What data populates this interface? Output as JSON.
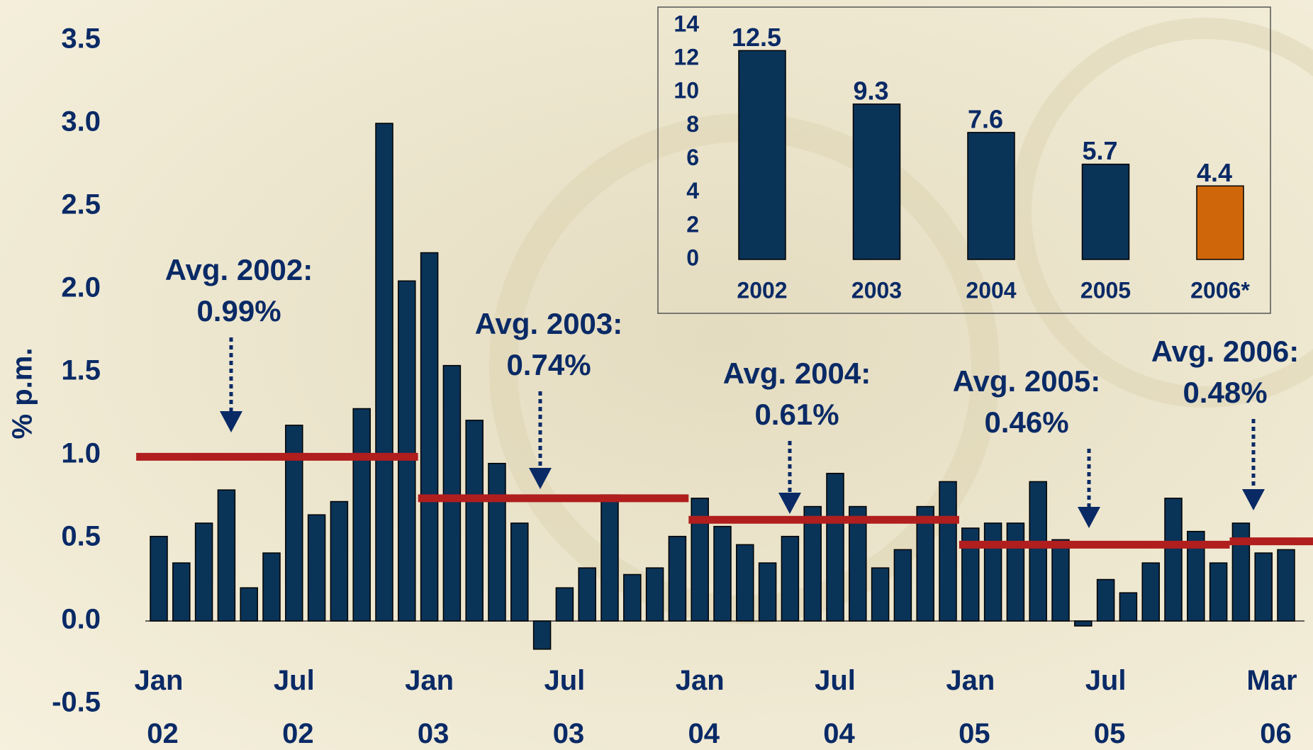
{
  "chart_data": [
    {
      "type": "bar",
      "y_label": "% p.m.",
      "categories": [
        "Jan 02",
        null,
        null,
        null,
        null,
        null,
        "Jul 02",
        null,
        null,
        null,
        null,
        null,
        "Jan 03",
        null,
        null,
        null,
        null,
        null,
        "Jul 03",
        null,
        null,
        null,
        null,
        null,
        "Jan 04",
        null,
        null,
        null,
        null,
        null,
        "Jul 04",
        null,
        null,
        null,
        null,
        null,
        "Jan 05",
        null,
        null,
        null,
        null,
        null,
        "Jul 05",
        null,
        null,
        null,
        null,
        null,
        null,
        null,
        "Mar 06"
      ],
      "values": [
        0.51,
        0.35,
        0.59,
        0.79,
        0.2,
        0.41,
        1.18,
        0.64,
        0.72,
        1.28,
        3.0,
        2.05,
        2.22,
        1.54,
        1.21,
        0.95,
        0.59,
        -0.17,
        0.2,
        0.32,
        0.76,
        0.28,
        0.32,
        0.51,
        0.74,
        0.57,
        0.46,
        0.35,
        0.51,
        0.69,
        0.89,
        0.69,
        0.32,
        0.43,
        0.69,
        0.84,
        0.56,
        0.59,
        0.59,
        0.84,
        0.49,
        -0.03,
        0.25,
        0.17,
        0.35,
        0.74,
        0.54,
        0.35,
        0.59,
        0.41,
        0.43
      ],
      "color": "#0a3358",
      "ylim": [
        -0.5,
        3.5
      ],
      "yticks": [
        -0.5,
        {
          "value": 0,
          "label": "0.0"
        },
        0.5,
        {
          "value": 1,
          "label": "1.0"
        },
        1.5,
        {
          "value": 2,
          "label": "2.0"
        },
        2.5,
        {
          "value": 3,
          "label": "3.0"
        },
        3.5
      ],
      "averages": [
        {
          "label": "Avg. 2002:",
          "value": 0.99,
          "value_label": "0.99%"
        },
        {
          "label": "Avg. 2003:",
          "value": 0.74,
          "value_label": "0.74%"
        },
        {
          "label": "Avg. 2004:",
          "value": 0.61,
          "value_label": "0.61%"
        },
        {
          "label": "Avg. 2005:",
          "value": 0.46,
          "value_label": "0.46%"
        },
        {
          "label": "Avg. 2006:",
          "value": 0.48,
          "value_label": "0.48%"
        }
      ],
      "average_color": "#b01e1e"
    },
    {
      "type": "bar",
      "categories": [
        "2002",
        "2003",
        "2004",
        "2005",
        "2006*"
      ],
      "values": [
        12.5,
        9.3,
        7.6,
        5.7,
        4.4
      ],
      "colors": [
        "#0a3358",
        "#0a3358",
        "#0a3358",
        "#0a3358",
        "#d0660a"
      ],
      "ylim": [
        0,
        14
      ],
      "yticks": [
        0,
        2,
        4,
        6,
        8,
        10,
        12,
        14
      ]
    }
  ]
}
